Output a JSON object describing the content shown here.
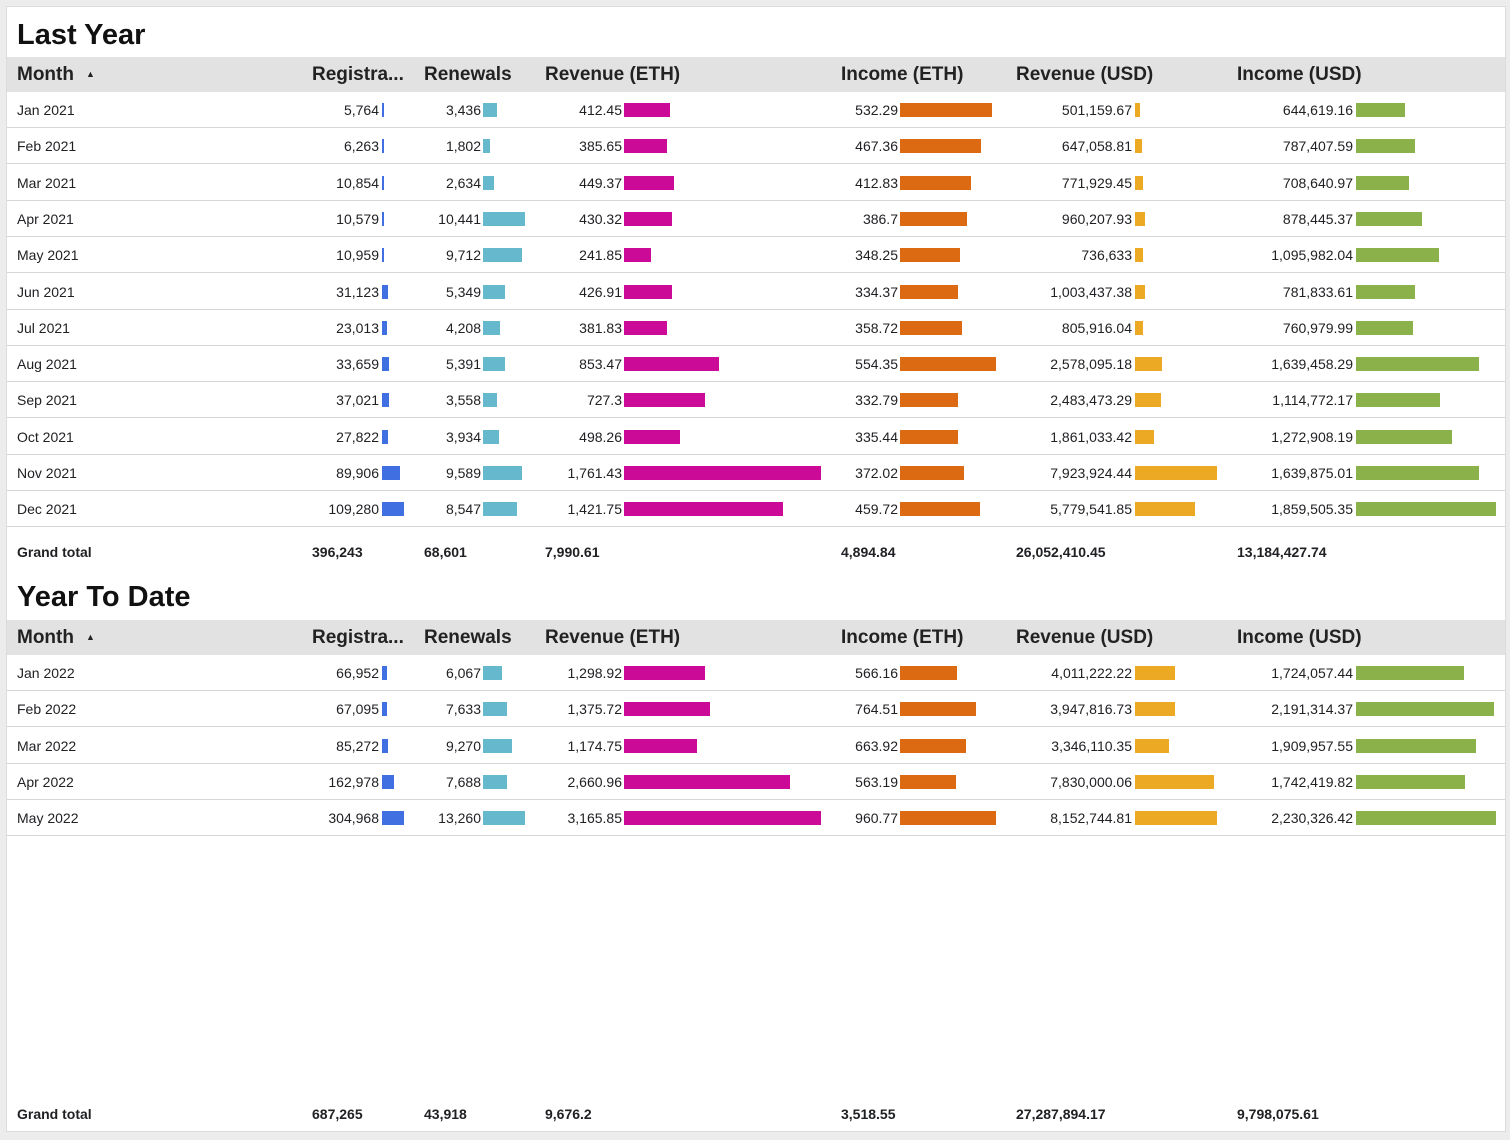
{
  "colors": {
    "registrations_bar": "#3f6fe0",
    "renewals_bar": "#66b8cc",
    "revenue_eth_bar": "#cc0a98",
    "income_eth_bar": "#dc6a13",
    "revenue_usd_bar": "#ecaa24",
    "income_usd_bar": "#8bb24a",
    "header_bg": "#e2e2e2"
  },
  "columns": [
    "Month",
    "Registra...",
    "Renewals",
    "Revenue (ETH)",
    "Income (ETH)",
    "Revenue (USD)",
    "Income (USD)"
  ],
  "sort_icon": "sort-ascending-icon",
  "total_label": "Grand total",
  "sections": [
    {
      "title": "Last Year",
      "rows": [
        {
          "month": "Jan 2021",
          "registrations": "5,764",
          "renewals": "3,436",
          "revenue_eth": "412.45",
          "income_eth": "532.29",
          "revenue_usd": "501,159.67",
          "income_usd": "644,619.16"
        },
        {
          "month": "Feb 2021",
          "registrations": "6,263",
          "renewals": "1,802",
          "revenue_eth": "385.65",
          "income_eth": "467.36",
          "revenue_usd": "647,058.81",
          "income_usd": "787,407.59"
        },
        {
          "month": "Mar 2021",
          "registrations": "10,854",
          "renewals": "2,634",
          "revenue_eth": "449.37",
          "income_eth": "412.83",
          "revenue_usd": "771,929.45",
          "income_usd": "708,640.97"
        },
        {
          "month": "Apr 2021",
          "registrations": "10,579",
          "renewals": "10,441",
          "revenue_eth": "430.32",
          "income_eth": "386.7",
          "revenue_usd": "960,207.93",
          "income_usd": "878,445.37"
        },
        {
          "month": "May 2021",
          "registrations": "10,959",
          "renewals": "9,712",
          "revenue_eth": "241.85",
          "income_eth": "348.25",
          "revenue_usd": "736,633",
          "income_usd": "1,095,982.04"
        },
        {
          "month": "Jun 2021",
          "registrations": "31,123",
          "renewals": "5,349",
          "revenue_eth": "426.91",
          "income_eth": "334.37",
          "revenue_usd": "1,003,437.38",
          "income_usd": "781,833.61"
        },
        {
          "month": "Jul 2021",
          "registrations": "23,013",
          "renewals": "4,208",
          "revenue_eth": "381.83",
          "income_eth": "358.72",
          "revenue_usd": "805,916.04",
          "income_usd": "760,979.99"
        },
        {
          "month": "Aug 2021",
          "registrations": "33,659",
          "renewals": "5,391",
          "revenue_eth": "853.47",
          "income_eth": "554.35",
          "revenue_usd": "2,578,095.18",
          "income_usd": "1,639,458.29"
        },
        {
          "month": "Sep 2021",
          "registrations": "37,021",
          "renewals": "3,558",
          "revenue_eth": "727.3",
          "income_eth": "332.79",
          "revenue_usd": "2,483,473.29",
          "income_usd": "1,114,772.17"
        },
        {
          "month": "Oct 2021",
          "registrations": "27,822",
          "renewals": "3,934",
          "revenue_eth": "498.26",
          "income_eth": "335.44",
          "revenue_usd": "1,861,033.42",
          "income_usd": "1,272,908.19"
        },
        {
          "month": "Nov 2021",
          "registrations": "89,906",
          "renewals": "9,589",
          "revenue_eth": "1,761.43",
          "income_eth": "372.02",
          "revenue_usd": "7,923,924.44",
          "income_usd": "1,639,875.01"
        },
        {
          "month": "Dec 2021",
          "registrations": "109,280",
          "renewals": "8,547",
          "revenue_eth": "1,421.75",
          "income_eth": "459.72",
          "revenue_usd": "5,779,541.85",
          "income_usd": "1,859,505.35"
        }
      ],
      "totals": {
        "registrations": "396,243",
        "renewals": "68,601",
        "revenue_eth": "7,990.61",
        "income_eth": "4,894.84",
        "revenue_usd": "26,052,410.45",
        "income_usd": "13,184,427.74"
      }
    },
    {
      "title": "Year To Date",
      "rows": [
        {
          "month": "Jan 2022",
          "registrations": "66,952",
          "renewals": "6,067",
          "revenue_eth": "1,298.92",
          "income_eth": "566.16",
          "revenue_usd": "4,011,222.22",
          "income_usd": "1,724,057.44"
        },
        {
          "month": "Feb 2022",
          "registrations": "67,095",
          "renewals": "7,633",
          "revenue_eth": "1,375.72",
          "income_eth": "764.51",
          "revenue_usd": "3,947,816.73",
          "income_usd": "2,191,314.37"
        },
        {
          "month": "Mar 2022",
          "registrations": "85,272",
          "renewals": "9,270",
          "revenue_eth": "1,174.75",
          "income_eth": "663.92",
          "revenue_usd": "3,346,110.35",
          "income_usd": "1,909,957.55"
        },
        {
          "month": "Apr 2022",
          "registrations": "162,978",
          "renewals": "7,688",
          "revenue_eth": "2,660.96",
          "income_eth": "563.19",
          "revenue_usd": "7,830,000.06",
          "income_usd": "1,742,419.82"
        },
        {
          "month": "May 2022",
          "registrations": "304,968",
          "renewals": "13,260",
          "revenue_eth": "3,165.85",
          "income_eth": "960.77",
          "revenue_usd": "8,152,744.81",
          "income_usd": "2,230,326.42"
        }
      ],
      "totals": {
        "registrations": "687,265",
        "renewals": "43,918",
        "revenue_eth": "9,676.2",
        "income_eth": "3,518.55",
        "revenue_usd": "27,287,894.17",
        "income_usd": "9,798,075.61"
      }
    }
  ]
}
